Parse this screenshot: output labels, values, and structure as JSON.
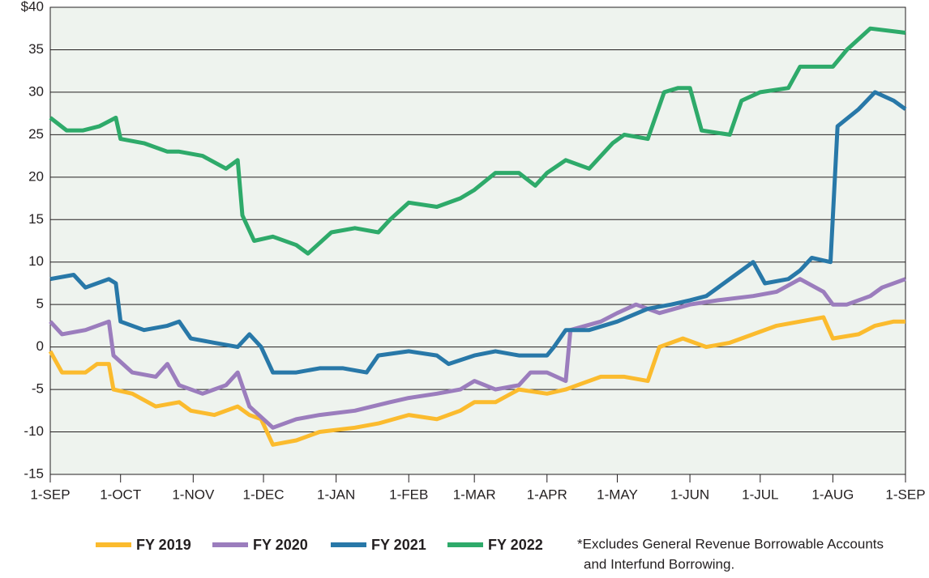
{
  "chart_data": {
    "type": "line",
    "xlim": [
      0,
      365
    ],
    "xticks": [
      {
        "value": 0,
        "label": "1-SEP"
      },
      {
        "value": 30,
        "label": "1-OCT"
      },
      {
        "value": 61,
        "label": "1-NOV"
      },
      {
        "value": 91,
        "label": "1-DEC"
      },
      {
        "value": 122,
        "label": "1-JAN"
      },
      {
        "value": 153,
        "label": "1-FEB"
      },
      {
        "value": 181,
        "label": "1-MAR"
      },
      {
        "value": 212,
        "label": "1-APR"
      },
      {
        "value": 242,
        "label": "1-MAY"
      },
      {
        "value": 273,
        "label": "1-JUN"
      },
      {
        "value": 303,
        "label": "1-JUL"
      },
      {
        "value": 334,
        "label": "1-AUG"
      },
      {
        "value": 365,
        "label": "1-SEP"
      }
    ],
    "ylim": [
      -15,
      40
    ],
    "yticks": [
      -15,
      -10,
      -5,
      0,
      5,
      10,
      15,
      20,
      25,
      30,
      35,
      {
        "value": 40,
        "label": "$40"
      }
    ],
    "grid": true,
    "series": [
      {
        "name": "FY 2019",
        "color": "#fbbb2e",
        "x": [
          0,
          5,
          15,
          20,
          25,
          27,
          35,
          45,
          55,
          60,
          70,
          80,
          85,
          90,
          95,
          105,
          115,
          130,
          140,
          153,
          165,
          175,
          181,
          190,
          200,
          212,
          220,
          225,
          235,
          245,
          255,
          260,
          270,
          280,
          290,
          300,
          310,
          320,
          330,
          334,
          345,
          352,
          360,
          365
        ],
        "values": [
          -0.5,
          -3,
          -3,
          -2,
          -2,
          -5,
          -5.5,
          -7,
          -6.5,
          -7.5,
          -8,
          -7,
          -8,
          -8.5,
          -11.5,
          -11,
          -10,
          -9.5,
          -9,
          -8,
          -8.5,
          -7.5,
          -6.5,
          -6.5,
          -5,
          -5.5,
          -5,
          -4.5,
          -3.5,
          -3.5,
          -4,
          0,
          1,
          0,
          0.5,
          1.5,
          2.5,
          3,
          3.5,
          1,
          1.5,
          2.5,
          3,
          3
        ]
      },
      {
        "name": "FY 2020",
        "color": "#9b7dbd",
        "x": [
          0,
          5,
          15,
          25,
          27,
          35,
          45,
          50,
          55,
          65,
          75,
          80,
          85,
          95,
          105,
          115,
          130,
          145,
          153,
          165,
          175,
          181,
          190,
          200,
          205,
          212,
          220,
          222,
          235,
          242,
          250,
          260,
          273,
          285,
          300,
          310,
          320,
          330,
          334,
          340,
          350,
          355,
          365
        ],
        "values": [
          3,
          1.5,
          2,
          3,
          -1,
          -3,
          -3.5,
          -2,
          -4.5,
          -5.5,
          -4.5,
          -3,
          -7,
          -9.5,
          -8.5,
          -8,
          -7.5,
          -6.5,
          -6,
          -5.5,
          -5,
          -4,
          -5,
          -4.5,
          -3,
          -3,
          -4,
          2,
          3,
          4,
          5,
          4,
          5,
          5.5,
          6,
          6.5,
          8,
          6.5,
          5,
          5,
          6,
          7,
          8
        ]
      },
      {
        "name": "FY 2021",
        "color": "#2878a8",
        "x": [
          0,
          10,
          15,
          25,
          28,
          30,
          40,
          50,
          55,
          60,
          70,
          80,
          85,
          90,
          95,
          105,
          115,
          125,
          135,
          140,
          153,
          165,
          170,
          181,
          190,
          200,
          212,
          215,
          220,
          230,
          242,
          255,
          265,
          273,
          280,
          290,
          300,
          305,
          315,
          320,
          325,
          333,
          336,
          345,
          352,
          360,
          365
        ],
        "values": [
          8,
          8.5,
          7,
          8,
          7.5,
          3,
          2,
          2.5,
          3,
          1,
          0.5,
          0,
          1.5,
          0,
          -3,
          -3,
          -2.5,
          -2.5,
          -3,
          -1,
          -0.5,
          -1,
          -2,
          -1,
          -0.5,
          -1,
          -1,
          0,
          2,
          2,
          3,
          4.5,
          5,
          5.5,
          6,
          8,
          10,
          7.5,
          8,
          9,
          10.5,
          10,
          26,
          28,
          30,
          29,
          28
        ]
      },
      {
        "name": "FY 2022",
        "color": "#2eaa6a",
        "x": [
          0,
          7,
          14,
          21,
          28,
          30,
          40,
          50,
          55,
          65,
          75,
          80,
          82,
          87,
          95,
          105,
          110,
          120,
          130,
          140,
          145,
          153,
          165,
          175,
          181,
          190,
          200,
          207,
          212,
          220,
          230,
          240,
          245,
          255,
          262,
          268,
          273,
          278,
          290,
          295,
          303,
          315,
          320,
          334,
          340,
          350,
          365
        ],
        "values": [
          27,
          25.5,
          25.5,
          26,
          27,
          24.5,
          24,
          23,
          23,
          22.5,
          21,
          22,
          15.5,
          12.5,
          13,
          12,
          11,
          13.5,
          14,
          13.5,
          15,
          17,
          16.5,
          17.5,
          18.5,
          20.5,
          20.5,
          19,
          20.5,
          22,
          21,
          24,
          25,
          24.5,
          30,
          30.5,
          30.5,
          25.5,
          25,
          29,
          30,
          30.5,
          33,
          33,
          35,
          37.5,
          37
        ]
      }
    ],
    "note": [
      "*Excludes General Revenue Borrowable Accounts",
      "and Interfund Borrowing."
    ]
  }
}
